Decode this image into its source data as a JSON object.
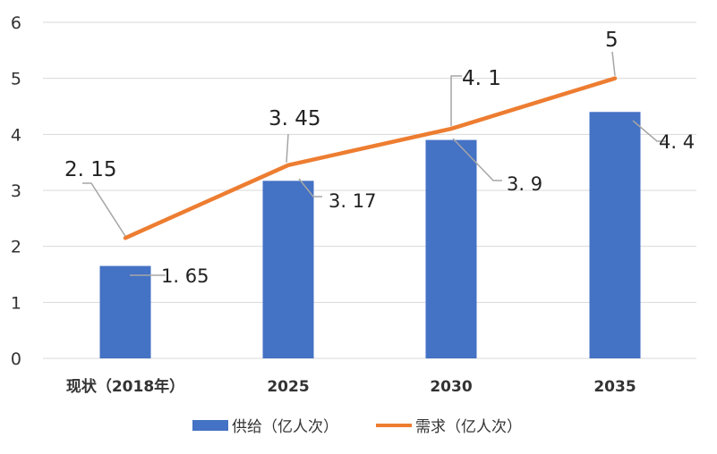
{
  "chart_data": {
    "type": "bar",
    "categories": [
      "现状（2018年）",
      "2025",
      "2030",
      "2035"
    ],
    "series": [
      {
        "name": "供给（亿人次）",
        "kind": "bar",
        "color": "#4472C4",
        "values": [
          1.65,
          3.17,
          3.9,
          4.4
        ],
        "labels": [
          "1. 65",
          "3. 17",
          "3. 9",
          "4. 4"
        ]
      },
      {
        "name": "需求（亿人次）",
        "kind": "line",
        "color": "#ED7D31",
        "values": [
          2.15,
          3.45,
          4.1,
          5
        ],
        "labels": [
          "2. 15",
          "3. 45",
          "4. 1",
          "5"
        ]
      }
    ],
    "yticks": [
      "0",
      "1",
      "2",
      "3",
      "4",
      "5",
      "6"
    ],
    "ylim": [
      0,
      6
    ],
    "grid": true,
    "legend": "bottom"
  }
}
